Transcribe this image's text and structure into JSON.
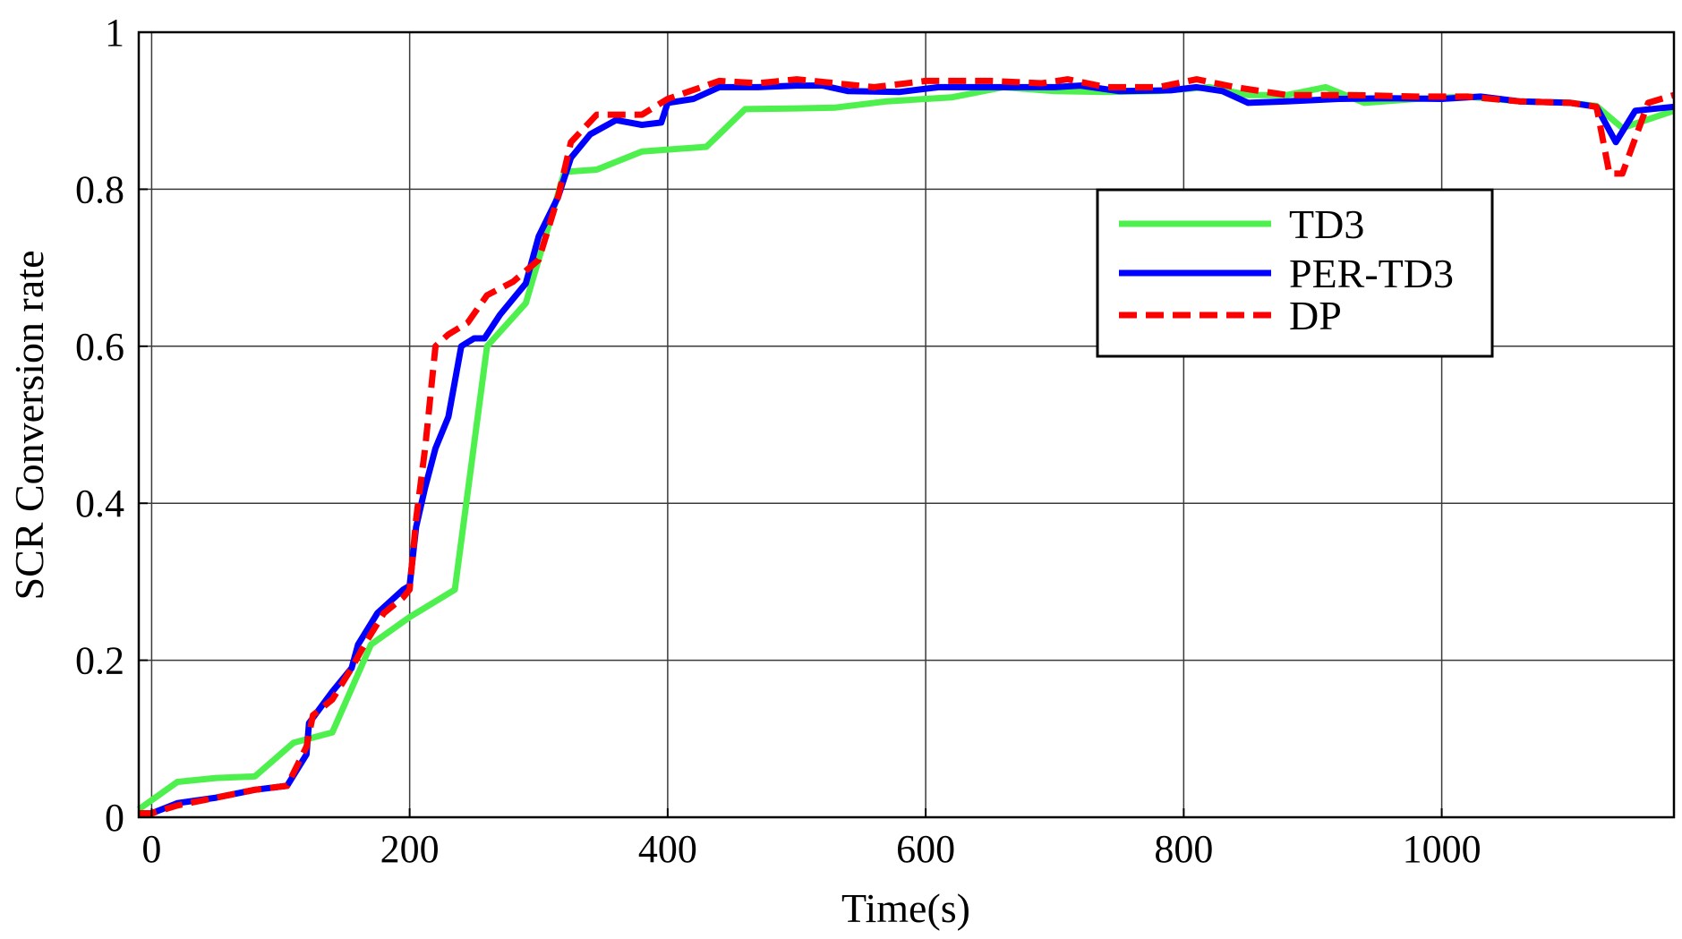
{
  "chart_data": {
    "type": "line",
    "title": "",
    "xlabel": "Time(s)",
    "ylabel": "SCR Conversion rate",
    "xlim": [
      -10,
      1180
    ],
    "ylim": [
      0,
      1
    ],
    "x_ticks": [
      0,
      200,
      400,
      600,
      800,
      1000
    ],
    "y_ticks": [
      0,
      0.2,
      0.4,
      0.6,
      0.8,
      1
    ],
    "x_tick_labels": [
      "0",
      "200",
      "400",
      "600",
      "800",
      "1000"
    ],
    "y_tick_labels": [
      "0",
      "0.2",
      "0.4",
      "0.6",
      "0.8",
      "1"
    ],
    "grid": true,
    "legend_position": "upper-right",
    "series": [
      {
        "name": "TD3",
        "color": "#4df04d",
        "style": "solid",
        "points": [
          [
            -10,
            0.01
          ],
          [
            20,
            0.045
          ],
          [
            50,
            0.05
          ],
          [
            80,
            0.052
          ],
          [
            110,
            0.095
          ],
          [
            140,
            0.108
          ],
          [
            170,
            0.22
          ],
          [
            200,
            0.255
          ],
          [
            235,
            0.29
          ],
          [
            260,
            0.6
          ],
          [
            290,
            0.655
          ],
          [
            320,
            0.822
          ],
          [
            345,
            0.825
          ],
          [
            380,
            0.848
          ],
          [
            430,
            0.854
          ],
          [
            460,
            0.902
          ],
          [
            500,
            0.903
          ],
          [
            530,
            0.904
          ],
          [
            570,
            0.912
          ],
          [
            620,
            0.917
          ],
          [
            660,
            0.93
          ],
          [
            700,
            0.925
          ],
          [
            740,
            0.924
          ],
          [
            780,
            0.925
          ],
          [
            820,
            0.93
          ],
          [
            850,
            0.92
          ],
          [
            880,
            0.92
          ],
          [
            910,
            0.93
          ],
          [
            940,
            0.91
          ],
          [
            980,
            0.915
          ],
          [
            1020,
            0.918
          ],
          [
            1060,
            0.912
          ],
          [
            1100,
            0.91
          ],
          [
            1120,
            0.906
          ],
          [
            1140,
            0.878
          ],
          [
            1180,
            0.9
          ]
        ]
      },
      {
        "name": "PER-TD3",
        "color": "#0000ff",
        "style": "solid",
        "points": [
          [
            -10,
            0.005
          ],
          [
            0,
            0.005
          ],
          [
            20,
            0.018
          ],
          [
            50,
            0.025
          ],
          [
            80,
            0.035
          ],
          [
            105,
            0.04
          ],
          [
            120,
            0.08
          ],
          [
            122,
            0.12
          ],
          [
            140,
            0.16
          ],
          [
            155,
            0.19
          ],
          [
            160,
            0.22
          ],
          [
            175,
            0.26
          ],
          [
            185,
            0.275
          ],
          [
            195,
            0.29
          ],
          [
            200,
            0.295
          ],
          [
            205,
            0.37
          ],
          [
            212,
            0.42
          ],
          [
            220,
            0.47
          ],
          [
            230,
            0.51
          ],
          [
            240,
            0.6
          ],
          [
            250,
            0.61
          ],
          [
            258,
            0.61
          ],
          [
            270,
            0.64
          ],
          [
            280,
            0.66
          ],
          [
            290,
            0.68
          ],
          [
            300,
            0.74
          ],
          [
            315,
            0.79
          ],
          [
            325,
            0.84
          ],
          [
            340,
            0.87
          ],
          [
            360,
            0.888
          ],
          [
            380,
            0.882
          ],
          [
            395,
            0.885
          ],
          [
            400,
            0.91
          ],
          [
            420,
            0.915
          ],
          [
            440,
            0.93
          ],
          [
            470,
            0.93
          ],
          [
            500,
            0.932
          ],
          [
            520,
            0.932
          ],
          [
            540,
            0.925
          ],
          [
            580,
            0.924
          ],
          [
            610,
            0.93
          ],
          [
            650,
            0.93
          ],
          [
            700,
            0.93
          ],
          [
            720,
            0.932
          ],
          [
            750,
            0.925
          ],
          [
            790,
            0.926
          ],
          [
            810,
            0.93
          ],
          [
            830,
            0.925
          ],
          [
            850,
            0.91
          ],
          [
            880,
            0.912
          ],
          [
            920,
            0.915
          ],
          [
            960,
            0.916
          ],
          [
            1000,
            0.915
          ],
          [
            1030,
            0.918
          ],
          [
            1060,
            0.912
          ],
          [
            1100,
            0.91
          ],
          [
            1120,
            0.905
          ],
          [
            1135,
            0.86
          ],
          [
            1150,
            0.9
          ],
          [
            1180,
            0.905
          ]
        ]
      },
      {
        "name": "DP",
        "color": "#ff0000",
        "style": "dashed",
        "points": [
          [
            -10,
            0.005
          ],
          [
            0,
            0.005
          ],
          [
            20,
            0.015
          ],
          [
            50,
            0.025
          ],
          [
            80,
            0.035
          ],
          [
            105,
            0.04
          ],
          [
            120,
            0.09
          ],
          [
            125,
            0.13
          ],
          [
            140,
            0.15
          ],
          [
            155,
            0.19
          ],
          [
            165,
            0.22
          ],
          [
            180,
            0.26
          ],
          [
            195,
            0.28
          ],
          [
            200,
            0.29
          ],
          [
            205,
            0.38
          ],
          [
            212,
            0.47
          ],
          [
            220,
            0.6
          ],
          [
            230,
            0.615
          ],
          [
            245,
            0.63
          ],
          [
            260,
            0.665
          ],
          [
            280,
            0.682
          ],
          [
            300,
            0.71
          ],
          [
            315,
            0.79
          ],
          [
            325,
            0.86
          ],
          [
            345,
            0.895
          ],
          [
            380,
            0.895
          ],
          [
            400,
            0.915
          ],
          [
            440,
            0.938
          ],
          [
            470,
            0.935
          ],
          [
            500,
            0.94
          ],
          [
            530,
            0.935
          ],
          [
            560,
            0.93
          ],
          [
            600,
            0.938
          ],
          [
            650,
            0.938
          ],
          [
            690,
            0.935
          ],
          [
            710,
            0.94
          ],
          [
            740,
            0.93
          ],
          [
            780,
            0.93
          ],
          [
            810,
            0.94
          ],
          [
            840,
            0.93
          ],
          [
            880,
            0.92
          ],
          [
            930,
            0.92
          ],
          [
            980,
            0.918
          ],
          [
            1020,
            0.918
          ],
          [
            1060,
            0.912
          ],
          [
            1100,
            0.91
          ],
          [
            1120,
            0.905
          ],
          [
            1130,
            0.82
          ],
          [
            1140,
            0.82
          ],
          [
            1160,
            0.91
          ],
          [
            1180,
            0.92
          ]
        ]
      }
    ]
  }
}
